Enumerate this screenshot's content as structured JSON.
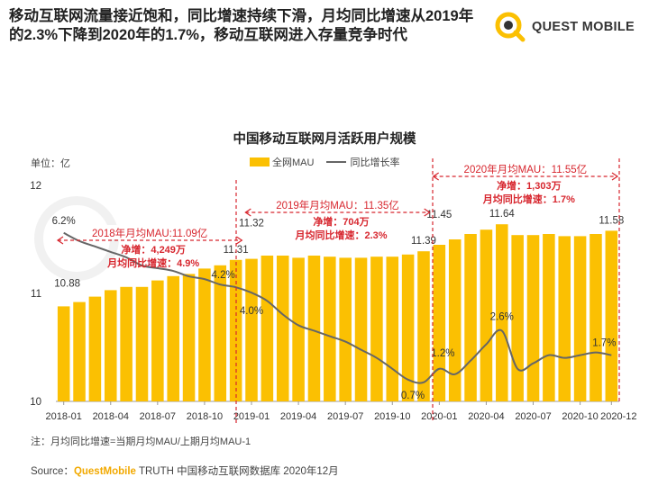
{
  "header": {
    "headline": "移动互联网流量接近饱和，同比增速持续下滑，月均同比增速从2019年的2.3%下降到2020年的1.7%，移动互联网进入存量竞争时代",
    "brand": "QUEST MOBILE"
  },
  "colors": {
    "bar": "#FBC002",
    "line": "#666666",
    "accent_red": "#D7262E",
    "brand_yellow": "#F2A900"
  },
  "chart_data": {
    "type": "bar",
    "title": "中国移动互联网月活跃用户规模",
    "unit_label": "单位：亿",
    "legend": [
      "全网MAU",
      "同比增长率"
    ],
    "ylim": [
      10,
      12
    ],
    "yticks": [
      "10",
      "11",
      "12"
    ],
    "x_tick_labels": [
      "2018-01",
      "2018-04",
      "2018-07",
      "2018-10",
      "2019-01",
      "2019-04",
      "2019-07",
      "2019-10",
      "2020-01",
      "2020-04",
      "2020-07",
      "2020-10",
      "2020-12"
    ],
    "categories": [
      "2018-01",
      "2018-02",
      "2018-03",
      "2018-04",
      "2018-05",
      "2018-06",
      "2018-07",
      "2018-08",
      "2018-09",
      "2018-10",
      "2018-11",
      "2018-12",
      "2019-01",
      "2019-02",
      "2019-03",
      "2019-04",
      "2019-05",
      "2019-06",
      "2019-07",
      "2019-08",
      "2019-09",
      "2019-10",
      "2019-11",
      "2019-12",
      "2020-01",
      "2020-02",
      "2020-03",
      "2020-04",
      "2020-05",
      "2020-06",
      "2020-07",
      "2020-08",
      "2020-09",
      "2020-10",
      "2020-11",
      "2020-12"
    ],
    "series": [
      {
        "name": "全网MAU",
        "type": "bar",
        "values": [
          10.88,
          10.92,
          10.97,
          11.03,
          11.06,
          11.06,
          11.12,
          11.16,
          11.18,
          11.23,
          11.26,
          11.31,
          11.32,
          11.35,
          11.35,
          11.33,
          11.35,
          11.34,
          11.33,
          11.33,
          11.34,
          11.34,
          11.36,
          11.39,
          11.45,
          11.5,
          11.55,
          11.59,
          11.64,
          11.54,
          11.54,
          11.55,
          11.53,
          11.53,
          11.55,
          11.58
        ]
      },
      {
        "name": "同比增长率",
        "type": "line",
        "values": [
          6.2,
          5.9,
          5.7,
          5.5,
          5.3,
          5.0,
          4.9,
          4.8,
          4.6,
          4.5,
          4.3,
          4.2,
          4.0,
          3.7,
          3.2,
          2.8,
          2.6,
          2.4,
          2.2,
          1.9,
          1.6,
          1.2,
          0.8,
          0.7,
          1.2,
          1.0,
          1.5,
          2.1,
          2.6,
          1.2,
          1.4,
          1.7,
          1.6,
          1.7,
          1.8,
          1.7
        ]
      }
    ],
    "data_labels": [
      {
        "text": "10.88",
        "index": 0,
        "series": "bar"
      },
      {
        "text": "11.31",
        "index": 11,
        "series": "bar"
      },
      {
        "text": "11.32",
        "index": 12,
        "series": "bar"
      },
      {
        "text": "11.39",
        "index": 23,
        "series": "bar"
      },
      {
        "text": "11.45",
        "index": 24,
        "series": "bar"
      },
      {
        "text": "11.64",
        "index": 28,
        "series": "bar"
      },
      {
        "text": "11.58",
        "index": 35,
        "series": "bar"
      },
      {
        "text": "6.2%",
        "index": 0,
        "series": "line"
      },
      {
        "text": "4.2%",
        "index": 11,
        "series": "line"
      },
      {
        "text": "4.0%",
        "index": 12,
        "series": "line"
      },
      {
        "text": "0.7%",
        "index": 23,
        "series": "line"
      },
      {
        "text": "1.2%",
        "index": 24,
        "series": "line"
      },
      {
        "text": "2.6%",
        "index": 28,
        "series": "line"
      },
      {
        "text": "1.7%",
        "index": 35,
        "series": "line"
      }
    ],
    "annotations": [
      {
        "year": "2018",
        "title": "2018年月均MAU:11.09亿",
        "net": "净增：4,249万",
        "yoy": "月均同比增速：4.9%",
        "start": 0,
        "end": 11
      },
      {
        "year": "2019",
        "title": "2019年月均MAU：11.35亿",
        "net": "净增：704万",
        "yoy": "月均同比增速：2.3%",
        "start": 12,
        "end": 23
      },
      {
        "year": "2020",
        "title": "2020年月均MAU：11.55亿",
        "net": "净增：1,303万",
        "yoy": "月均同比增速：1.7%",
        "start": 24,
        "end": 35
      }
    ]
  },
  "footer": {
    "note": "注：月均同比增速=当期月均MAU/上期月均MAU-1",
    "source_prefix": "Source：",
    "source_brand": "QuestMobile",
    "source_rest": " TRUTH 中国移动互联网数据库 2020年12月"
  }
}
